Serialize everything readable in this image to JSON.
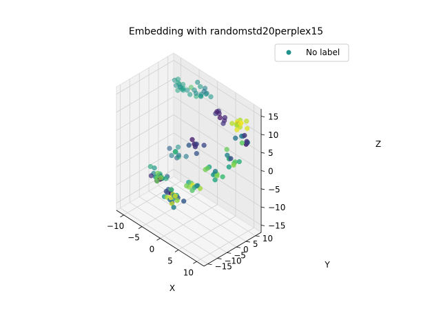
{
  "chart_data": {
    "type": "scatter",
    "projection": "3d",
    "title": "Embedding with randomstd20perplex15",
    "xlabel": "X",
    "ylabel": "Y",
    "zlabel": "Z",
    "xticks": [
      "−10",
      "−5",
      "0",
      "5",
      "10"
    ],
    "yticks": [
      "−15",
      "−10",
      "−5",
      "0",
      "5",
      "10"
    ],
    "zticks": [
      "−15",
      "−10",
      "−5",
      "0",
      "5",
      "10",
      "15"
    ],
    "xlim": [
      -12,
      12
    ],
    "ylim": [
      -17,
      13
    ],
    "zlim": [
      -17,
      17
    ],
    "grid": true,
    "colormap": "viridis",
    "legend": {
      "position": "top-right",
      "entries": [
        {
          "label": "No label",
          "color": "#21918c"
        }
      ]
    },
    "points_note": "",
    "clusters": [
      {
        "x": -8,
        "y": 10,
        "z": 11,
        "n": 14,
        "c": [
          0.45,
          0.6
        ]
      },
      {
        "x": -3,
        "y": 11,
        "z": 12,
        "n": 14,
        "c": [
          0.35,
          0.75
        ]
      },
      {
        "x": 3,
        "y": 10,
        "z": 10,
        "n": 8,
        "c": [
          0.05,
          0.2
        ]
      },
      {
        "x": 8,
        "y": 9,
        "z": 11,
        "n": 12,
        "c": [
          0.85,
          1.0
        ]
      },
      {
        "x": 10,
        "y": 7,
        "z": 9,
        "n": 10,
        "c": [
          0.0,
          0.75
        ]
      },
      {
        "x": 7,
        "y": 5,
        "z": 2,
        "n": 10,
        "c": [
          0.2,
          0.95
        ]
      },
      {
        "x": 4,
        "y": 2,
        "z": -2,
        "n": 10,
        "c": [
          0.25,
          0.9
        ]
      },
      {
        "x": -7,
        "y": 4,
        "z": -5,
        "n": 10,
        "c": [
          0.3,
          0.7
        ]
      },
      {
        "x": -1,
        "y": 0,
        "z": -8,
        "n": 10,
        "c": [
          0.3,
          0.95
        ]
      },
      {
        "x": 1,
        "y": -1,
        "z": 4,
        "n": 8,
        "c": [
          0.05,
          0.3
        ]
      },
      {
        "x": -8,
        "y": -4,
        "z": -9,
        "n": 22,
        "c": [
          0.0,
          0.85
        ]
      },
      {
        "x": -3,
        "y": -6,
        "z": -11,
        "n": 22,
        "c": [
          0.0,
          0.95
        ]
      }
    ]
  }
}
